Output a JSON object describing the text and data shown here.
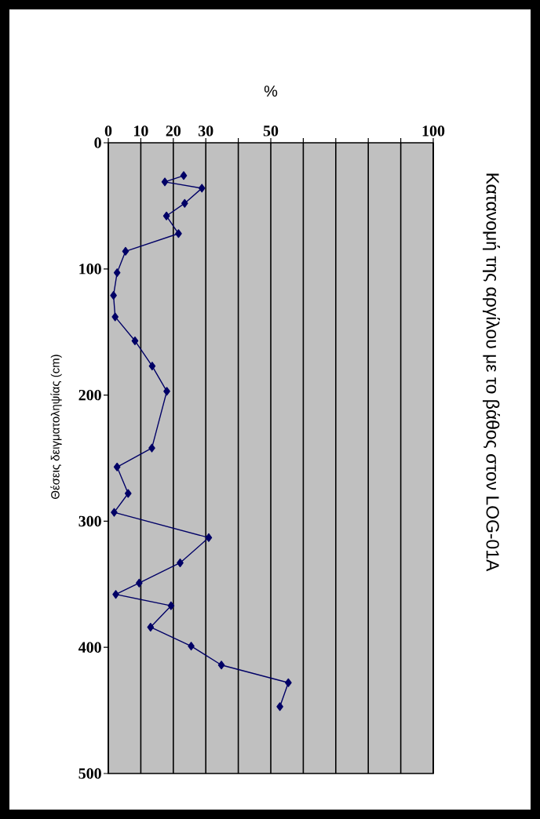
{
  "chart_data": {
    "type": "line",
    "title": "Κατανομή της αργίλου με το βάθος στον LOG-01A",
    "xlabel": "%",
    "ylabel": "Θέσεις δειγματοληψίας (cm)",
    "x": [
      23.2,
      17.4,
      28.8,
      23.5,
      17.9,
      21.6,
      5.3,
      2.7,
      1.6,
      2.1,
      8.2,
      13.5,
      18.0,
      13.4,
      2.7,
      6.1,
      1.8,
      30.9,
      22.1,
      9.5,
      2.3,
      19.3,
      13.0,
      25.5,
      34.8,
      55.4,
      52.8
    ],
    "series": [
      {
        "color": "#000066",
        "values": [
          26,
          31,
          36,
          48,
          58,
          72,
          86,
          103,
          121,
          138,
          157,
          177,
          197,
          242,
          257,
          278,
          293,
          313,
          333,
          349,
          358,
          367,
          384,
          399,
          414,
          428,
          447
        ]
      }
    ],
    "xlim": [
      0,
      100
    ],
    "ylim": [
      500,
      0
    ],
    "xticks": [
      0,
      10,
      20,
      30,
      {
        "value": 40,
        "label": null
      },
      50,
      {
        "value": 60,
        "label": null
      },
      {
        "value": 70,
        "label": null
      },
      {
        "value": 80,
        "label": null
      },
      {
        "value": 90,
        "label": null
      },
      100
    ],
    "yticks": [
      0,
      100,
      200,
      300,
      400,
      500
    ],
    "grid": "x",
    "marker": "diamond",
    "line_style": "solid"
  }
}
